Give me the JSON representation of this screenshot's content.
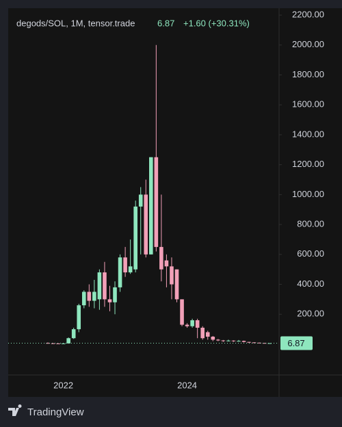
{
  "chart_data": {
    "type": "candlestick",
    "title": "degods/SOL, 1M, tensor.trade",
    "change": "+1.60 (+30.31%)",
    "brand": "TradingView",
    "categories": [
      null,
      null,
      null,
      "2022",
      null,
      null,
      null,
      null,
      null,
      null,
      null,
      null,
      null,
      null,
      null,
      null,
      null,
      null,
      null,
      null,
      null,
      null,
      null,
      null,
      null,
      null,
      null,
      "2024",
      null,
      null,
      null,
      null,
      null,
      null,
      null,
      null,
      null,
      null,
      null,
      null,
      null,
      null,
      null,
      null
    ],
    "open": [
      8,
      6,
      5,
      3,
      5,
      40,
      100,
      260,
      350,
      290,
      300,
      480,
      300,
      280,
      380,
      580,
      480,
      500,
      920,
      1000,
      600,
      1250,
      650,
      560,
      520,
      500,
      300,
      130,
      120,
      160,
      110,
      80,
      50,
      30,
      25,
      22,
      24,
      20,
      22,
      15,
      12,
      10,
      8,
      5.27
    ],
    "high": [
      12,
      8,
      6,
      7,
      45,
      110,
      270,
      360,
      400,
      430,
      500,
      550,
      390,
      420,
      600,
      650,
      700,
      960,
      1050,
      1100,
      1250,
      2000,
      1000,
      600,
      580,
      500,
      300,
      140,
      170,
      170,
      120,
      90,
      55,
      35,
      28,
      30,
      26,
      28,
      24,
      16,
      13,
      11,
      9,
      7.2
    ],
    "low": [
      4,
      3,
      2,
      2,
      4,
      35,
      80,
      240,
      250,
      240,
      230,
      250,
      220,
      200,
      350,
      450,
      470,
      480,
      600,
      580,
      600,
      620,
      420,
      380,
      300,
      280,
      120,
      110,
      110,
      40,
      30,
      30,
      20,
      20,
      15,
      18,
      15,
      17,
      12,
      9,
      8,
      6,
      4.5,
      5
    ],
    "close": [
      6,
      5,
      3,
      5,
      40,
      100,
      260,
      350,
      290,
      350,
      480,
      300,
      280,
      380,
      580,
      480,
      520,
      920,
      1000,
      600,
      1250,
      650,
      500,
      520,
      400,
      300,
      130,
      120,
      160,
      110,
      40,
      50,
      30,
      25,
      22,
      24,
      20,
      22,
      15,
      12,
      10,
      8,
      5.27,
      6.87
    ],
    "up_color": "#8ee6be",
    "down_color": "#f2a0b8",
    "ylim": [
      -206,
      2246
    ],
    "yticks": [
      {
        "value": 200,
        "label": "200.00"
      },
      {
        "value": 400,
        "label": "400.00"
      },
      {
        "value": 600,
        "label": "600.00"
      },
      {
        "value": 800,
        "label": "800.00"
      },
      {
        "value": 1000,
        "label": "1000.00"
      },
      {
        "value": 1200,
        "label": "1200.00"
      },
      {
        "value": 1400,
        "label": "1400.00"
      },
      {
        "value": 1600,
        "label": "1600.00"
      },
      {
        "value": 1800,
        "label": "1800.00"
      },
      {
        "value": 2000,
        "label": "2000.00"
      },
      {
        "value": 2200,
        "label": "2200.00"
      }
    ],
    "grid": false
  }
}
